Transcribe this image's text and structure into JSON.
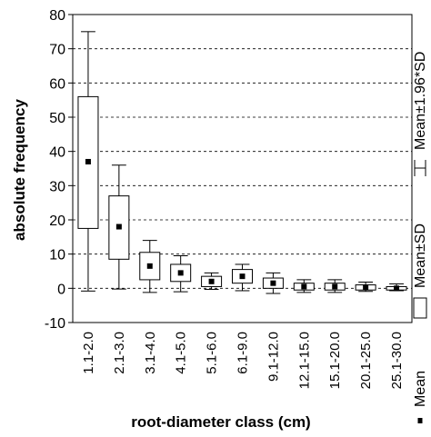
{
  "chart_data": {
    "type": "box",
    "xlabel": "root-diameter class (cm)",
    "ylabel": "absolute frequency",
    "ylim": [
      -10,
      80
    ],
    "yticks": [
      -10,
      0,
      10,
      20,
      30,
      40,
      50,
      60,
      70,
      80
    ],
    "grid": "horizontal dashed",
    "legend_position": "right",
    "categories": [
      "1.1-2.0",
      "2.1-3.0",
      "3.1-4.0",
      "4.1-5.0",
      "5.1-6.0",
      "6.1-9.0",
      "9.1-12.0",
      "12.1-15.0",
      "15.1-20.0",
      "20.1-25.0",
      "25.1-30.0"
    ],
    "mean": [
      37,
      18,
      6.5,
      4.5,
      2.0,
      3.5,
      1.5,
      0.5,
      0.5,
      0.3,
      0.0
    ],
    "sd_low": [
      17.5,
      8.5,
      2.5,
      2.0,
      0.5,
      1.5,
      0.0,
      -0.5,
      -0.5,
      -0.5,
      -0.5
    ],
    "sd_high": [
      56.0,
      27.0,
      10.5,
      7.0,
      3.5,
      5.5,
      3.0,
      1.5,
      1.5,
      1.0,
      0.5
    ],
    "ci_low": [
      -0.8,
      -0.2,
      -1.2,
      -1.0,
      -0.3,
      -0.7,
      -1.5,
      -1.2,
      -1.2,
      -0.9,
      -0.7
    ],
    "ci_high": [
      75,
      36,
      14,
      9.5,
      4.5,
      7,
      4.5,
      2.5,
      2.5,
      1.8,
      1.3
    ],
    "legend": [
      {
        "key": "mean",
        "label": "Mean"
      },
      {
        "key": "sd",
        "label": "Mean±SD"
      },
      {
        "key": "ci",
        "label": "Mean±1.96*SD"
      }
    ]
  }
}
